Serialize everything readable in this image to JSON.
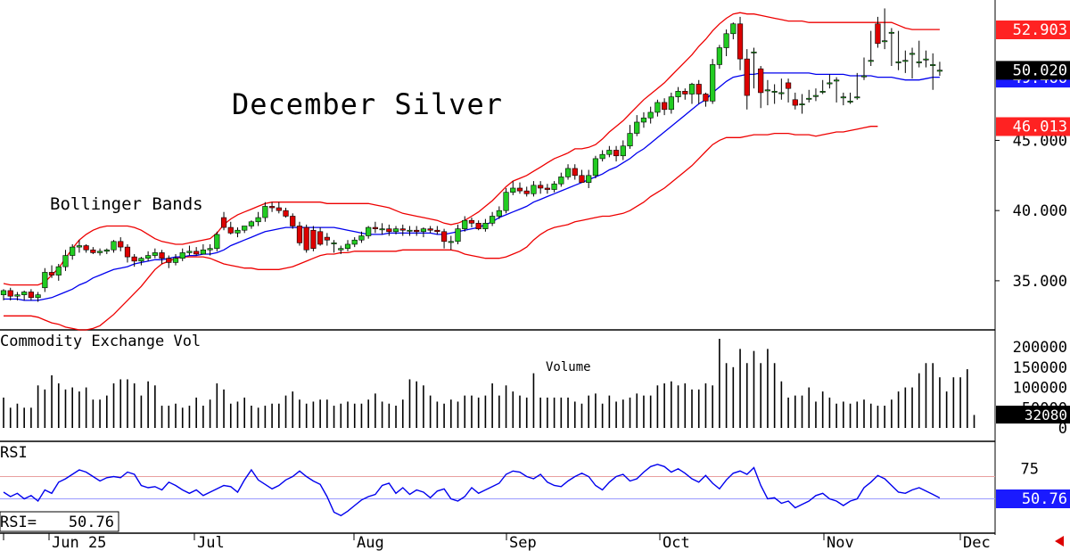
{
  "chart_data": [
    {
      "type": "candlestick",
      "title": "December Silver",
      "annotation": "Bollinger Bands",
      "y_ticks": [
        "35.000",
        "40.000",
        "45.000"
      ],
      "ylim": [
        31.5,
        55
      ],
      "last_price": "50.020",
      "upper_band_last": "52.903",
      "lower_band_last": "46.013",
      "middle_band_last": "49.466",
      "colors": {
        "up": "#22cc22",
        "down": "#dd0000",
        "band": "#ee0000",
        "middle": "#0000ee",
        "label_red": "#ff2222",
        "label_blue": "#1a1aff"
      },
      "bars": {
        "o": [
          34.0,
          34.3,
          33.9,
          34.0,
          34.2,
          33.8,
          34.5,
          35.6,
          35.4,
          36.0,
          36.8,
          37.4,
          37.5,
          37.2,
          37.0,
          37.1,
          37.2,
          37.8,
          37.4,
          36.7,
          36.4,
          36.6,
          36.8,
          37.0,
          36.6,
          36.3,
          36.6,
          37.0,
          37.1,
          36.9,
          37.2,
          37.3,
          39.5,
          38.8,
          38.4,
          38.6,
          38.9,
          39.2,
          39.5,
          40.3,
          40.2,
          40.0,
          39.6,
          38.9,
          38.8,
          38.6,
          38.5,
          38.1,
          37.7,
          37.2,
          37.3,
          37.6,
          37.9,
          38.2,
          38.8,
          38.7,
          38.7,
          38.5,
          38.7,
          38.6,
          38.6,
          38.5,
          38.7,
          38.6,
          38.5,
          37.8,
          37.8,
          38.7,
          39.3,
          39.1,
          38.7,
          39.1,
          39.6,
          40.0,
          41.3,
          41.6,
          41.4,
          41.2,
          41.8,
          41.6,
          41.5,
          41.9,
          42.4,
          43.0,
          42.5,
          42.0,
          42.5,
          43.7,
          44.0,
          44.3,
          43.9,
          44.6,
          45.5,
          46.3,
          46.6,
          47.0,
          47.7,
          47.2,
          48.1,
          48.5,
          48.3,
          49.0,
          48.3,
          47.8,
          50.4,
          51.6,
          52.6,
          53.3,
          50.8,
          51.3,
          50.1,
          48.6,
          48.5,
          48.4,
          49.1,
          47.9,
          47.6,
          48.0,
          48.2,
          48.5,
          49.1,
          49.3,
          48.1,
          47.8,
          48.1,
          49.6,
          50.7,
          53.3,
          52.1,
          52.7,
          50.6,
          50.7,
          51.2,
          50.6,
          50.8,
          50.4,
          50.0
        ],
        "h": [
          34.4,
          34.5,
          34.2,
          34.3,
          34.4,
          34.2,
          35.9,
          36.1,
          36.2,
          37.2,
          37.6,
          37.9,
          37.6,
          37.4,
          37.3,
          37.3,
          37.9,
          38.1,
          37.6,
          36.9,
          36.7,
          37.1,
          37.3,
          37.2,
          36.8,
          36.9,
          37.3,
          37.5,
          37.4,
          37.6,
          37.6,
          38.5,
          39.9,
          39.2,
          38.8,
          38.9,
          39.3,
          39.9,
          40.6,
          40.6,
          40.6,
          40.2,
          39.8,
          39.2,
          39.0,
          38.9,
          38.8,
          38.4,
          37.9,
          37.5,
          37.9,
          38.1,
          38.5,
          38.9,
          39.2,
          39.1,
          39.0,
          38.9,
          39.0,
          38.9,
          38.9,
          38.8,
          38.9,
          38.9,
          38.7,
          38.2,
          39.0,
          39.6,
          39.5,
          39.3,
          39.4,
          39.9,
          40.3,
          41.6,
          42.1,
          42.0,
          41.7,
          42.1,
          42.1,
          41.9,
          42.1,
          42.7,
          43.3,
          43.3,
          42.9,
          42.9,
          43.9,
          44.3,
          44.6,
          44.6,
          45.0,
          46.1,
          46.8,
          47.0,
          47.4,
          47.9,
          48.0,
          48.4,
          48.8,
          48.7,
          49.1,
          49.3,
          48.4,
          50.8,
          51.8,
          52.9,
          53.4,
          53.8,
          51.5,
          51.6,
          50.3,
          49.3,
          49.0,
          49.4,
          49.4,
          48.4,
          48.3,
          48.6,
          48.7,
          49.3,
          49.7,
          49.5,
          48.4,
          48.4,
          49.8,
          50.9,
          52.8,
          53.8,
          54.4,
          53.0,
          52.8,
          51.4,
          51.6,
          52.1,
          51.4,
          51.2,
          50.6
        ],
        "l": [
          33.6,
          33.6,
          33.6,
          33.6,
          33.6,
          33.5,
          34.2,
          35.2,
          35.0,
          35.7,
          36.5,
          37.0,
          37.0,
          36.9,
          36.8,
          36.9,
          37.0,
          37.1,
          36.3,
          36.0,
          36.1,
          36.4,
          36.6,
          36.2,
          35.9,
          36.1,
          36.4,
          36.8,
          36.8,
          36.9,
          36.8,
          37.1,
          38.6,
          38.3,
          38.1,
          38.4,
          38.7,
          38.9,
          39.2,
          39.9,
          39.8,
          39.5,
          38.7,
          37.5,
          37.0,
          37.1,
          37.5,
          37.5,
          37.0,
          36.9,
          37.1,
          37.4,
          37.7,
          38.0,
          38.4,
          38.3,
          38.2,
          38.3,
          38.2,
          38.2,
          38.2,
          38.1,
          38.4,
          38.3,
          37.3,
          37.2,
          37.6,
          38.5,
          38.8,
          38.6,
          38.5,
          38.9,
          39.4,
          39.8,
          41.1,
          41.2,
          41.0,
          41.0,
          41.2,
          41.2,
          41.3,
          41.7,
          42.2,
          42.2,
          42.1,
          41.6,
          42.3,
          43.5,
          43.8,
          43.5,
          43.6,
          44.4,
          45.3,
          45.9,
          46.2,
          46.7,
          46.8,
          46.9,
          47.7,
          47.9,
          47.6,
          47.6,
          47.4,
          47.6,
          50.1,
          51.0,
          52.2,
          50.0,
          47.2,
          48.7,
          47.3,
          47.5,
          47.6,
          47.9,
          47.7,
          47.2,
          46.9,
          47.7,
          47.8,
          48.3,
          48.7,
          47.7,
          47.5,
          47.6,
          47.9,
          49.3,
          50.3,
          51.6,
          51.5,
          50.3,
          50.0,
          49.8,
          49.4,
          50.2,
          50.2,
          48.6,
          49.6
        ],
        "c": [
          34.3,
          33.9,
          34.0,
          34.2,
          33.8,
          34.0,
          35.6,
          35.4,
          36.0,
          36.8,
          37.4,
          37.5,
          37.2,
          37.0,
          37.1,
          37.2,
          37.8,
          37.4,
          36.7,
          36.4,
          36.6,
          36.8,
          37.0,
          36.6,
          36.3,
          36.6,
          37.0,
          37.1,
          36.9,
          37.2,
          37.3,
          38.3,
          38.8,
          38.4,
          38.6,
          38.9,
          39.2,
          39.5,
          40.3,
          40.2,
          40.0,
          39.6,
          38.9,
          37.7,
          37.2,
          37.3,
          37.6,
          37.9,
          37.7,
          37.3,
          37.6,
          37.9,
          38.2,
          38.8,
          38.7,
          38.7,
          38.5,
          38.7,
          38.6,
          38.6,
          38.5,
          38.7,
          38.6,
          38.5,
          37.8,
          37.8,
          38.7,
          39.3,
          39.1,
          38.7,
          39.1,
          39.6,
          40.0,
          41.3,
          41.6,
          41.4,
          41.2,
          41.8,
          41.6,
          41.5,
          41.9,
          42.4,
          43.0,
          42.5,
          42.0,
          42.5,
          43.7,
          44.0,
          44.3,
          43.9,
          44.6,
          45.5,
          46.3,
          46.6,
          47.0,
          47.7,
          47.2,
          48.1,
          48.5,
          48.3,
          49.0,
          48.3,
          47.8,
          50.4,
          51.6,
          52.6,
          53.3,
          50.8,
          48.2,
          51.3,
          48.4,
          48.6,
          48.5,
          48.4,
          48.7,
          47.5,
          47.6,
          48.0,
          48.2,
          48.5,
          49.1,
          49.3,
          48.1,
          47.8,
          48.1,
          49.6,
          50.7,
          51.9,
          52.1,
          52.7,
          50.6,
          50.7,
          51.2,
          50.6,
          50.8,
          50.4,
          50.0
        ]
      },
      "upper_band": [
        34.8,
        34.7,
        34.7,
        34.7,
        34.7,
        34.7,
        34.9,
        35.4,
        35.9,
        36.6,
        37.3,
        37.9,
        38.3,
        38.6,
        38.8,
        38.9,
        38.9,
        38.9,
        38.9,
        38.8,
        38.6,
        38.3,
        38.0,
        37.8,
        37.7,
        37.6,
        37.6,
        37.7,
        37.8,
        37.9,
        38.0,
        38.4,
        39.0,
        39.4,
        39.7,
        39.9,
        40.1,
        40.3,
        40.5,
        40.6,
        40.6,
        40.6,
        40.6,
        40.6,
        40.6,
        40.6,
        40.6,
        40.5,
        40.5,
        40.5,
        40.5,
        40.5,
        40.5,
        40.5,
        40.4,
        40.3,
        40.2,
        40.0,
        39.8,
        39.7,
        39.6,
        39.5,
        39.4,
        39.3,
        39.1,
        39.0,
        39.1,
        39.3,
        39.6,
        39.9,
        40.3,
        40.7,
        41.2,
        41.7,
        42.1,
        42.3,
        42.5,
        42.8,
        43.1,
        43.4,
        43.7,
        43.9,
        44.1,
        44.4,
        44.4,
        44.5,
        44.7,
        45.1,
        45.6,
        46.0,
        46.4,
        46.9,
        47.4,
        47.9,
        48.3,
        48.7,
        49.1,
        49.6,
        50.1,
        50.6,
        51.1,
        51.7,
        52.2,
        52.8,
        53.3,
        53.7,
        54.0,
        54.1,
        54.0,
        54.0,
        53.9,
        53.8,
        53.7,
        53.6,
        53.5,
        53.5,
        53.5,
        53.4,
        53.4,
        53.4,
        53.4,
        53.4,
        53.4,
        53.4,
        53.4,
        53.4,
        53.4,
        53.4,
        53.4,
        53.4,
        53.2,
        53.0,
        52.9,
        52.9,
        52.9,
        52.9,
        52.9
      ],
      "middle_band": [
        33.7,
        33.7,
        33.7,
        33.6,
        33.6,
        33.6,
        33.7,
        33.8,
        34.0,
        34.2,
        34.4,
        34.7,
        34.9,
        35.2,
        35.4,
        35.6,
        35.8,
        35.9,
        36.0,
        36.2,
        36.3,
        36.4,
        36.5,
        36.5,
        36.6,
        36.7,
        36.7,
        36.8,
        36.8,
        36.9,
        36.9,
        37.0,
        37.2,
        37.5,
        37.7,
        37.9,
        38.1,
        38.3,
        38.5,
        38.6,
        38.7,
        38.8,
        38.8,
        38.8,
        38.8,
        38.8,
        38.8,
        38.8,
        38.8,
        38.7,
        38.6,
        38.5,
        38.4,
        38.3,
        38.3,
        38.3,
        38.4,
        38.4,
        38.4,
        38.4,
        38.4,
        38.4,
        38.4,
        38.3,
        38.3,
        38.4,
        38.5,
        38.6,
        38.7,
        38.8,
        39.0,
        39.2,
        39.5,
        39.7,
        39.9,
        40.1,
        40.3,
        40.6,
        40.8,
        41.0,
        41.2,
        41.4,
        41.6,
        41.8,
        42.0,
        42.2,
        42.4,
        42.6,
        42.9,
        43.1,
        43.4,
        43.7,
        44.1,
        44.4,
        44.8,
        45.2,
        45.6,
        46.0,
        46.4,
        46.8,
        47.2,
        47.6,
        47.9,
        48.4,
        48.8,
        49.2,
        49.5,
        49.6,
        49.7,
        49.7,
        49.8,
        49.8,
        49.8,
        49.8,
        49.8,
        49.8,
        49.8,
        49.8,
        49.7,
        49.7,
        49.7,
        49.7,
        49.7,
        49.6,
        49.6,
        49.6,
        49.6,
        49.5,
        49.5,
        49.5,
        49.4,
        49.3,
        49.3,
        49.3,
        49.4,
        49.5,
        49.5
      ],
      "lower_band": [
        32.5,
        32.5,
        32.5,
        32.5,
        32.5,
        32.4,
        32.2,
        32.0,
        31.9,
        31.7,
        31.6,
        31.5,
        31.5,
        31.6,
        31.8,
        32.2,
        32.6,
        33.1,
        33.6,
        34.1,
        34.6,
        35.2,
        35.8,
        36.2,
        36.4,
        36.6,
        36.7,
        36.7,
        36.7,
        36.7,
        36.6,
        36.4,
        36.2,
        36.1,
        36.0,
        35.9,
        35.9,
        35.8,
        35.8,
        35.8,
        35.8,
        35.9,
        36.0,
        36.2,
        36.4,
        36.6,
        36.8,
        36.9,
        36.9,
        37.0,
        37.0,
        37.1,
        37.1,
        37.1,
        37.1,
        37.1,
        37.1,
        37.1,
        37.2,
        37.2,
        37.2,
        37.2,
        37.2,
        37.2,
        37.2,
        37.2,
        37.1,
        36.9,
        36.8,
        36.7,
        36.6,
        36.6,
        36.6,
        36.7,
        36.9,
        37.1,
        37.4,
        37.9,
        38.3,
        38.6,
        38.8,
        38.9,
        39.0,
        39.2,
        39.3,
        39.4,
        39.5,
        39.6,
        39.6,
        39.7,
        39.8,
        40.0,
        40.3,
        40.6,
        41.0,
        41.3,
        41.6,
        42.0,
        42.4,
        42.8,
        43.2,
        43.7,
        44.2,
        44.7,
        45.0,
        45.2,
        45.2,
        45.2,
        45.3,
        45.4,
        45.4,
        45.4,
        45.5,
        45.5,
        45.5,
        45.4,
        45.4,
        45.4,
        45.3,
        45.4,
        45.5,
        45.6,
        45.6,
        45.7,
        45.8,
        45.9,
        46.0,
        46.0
      ],
      "x_ticks": [
        "Jun 25",
        "Jul",
        "Aug",
        "Sep",
        "Oct",
        "Nov",
        "Dec"
      ]
    },
    {
      "type": "bar",
      "title": "Commodity Exchange Vol",
      "annotation": "Volume",
      "y_ticks": [
        "200000",
        "150000",
        "100000",
        "50000",
        "0"
      ],
      "ylim": [
        0,
        220000
      ],
      "last_value": "32080",
      "values": [
        75000,
        50000,
        60000,
        50000,
        50000,
        105000,
        95000,
        130000,
        110000,
        95000,
        100000,
        90000,
        100000,
        70000,
        70000,
        80000,
        110000,
        120000,
        120000,
        110000,
        80000,
        115000,
        105000,
        55000,
        55000,
        60000,
        50000,
        55000,
        75000,
        55000,
        70000,
        110000,
        95000,
        60000,
        65000,
        75000,
        55000,
        50000,
        55000,
        60000,
        60000,
        80000,
        90000,
        70000,
        60000,
        65000,
        70000,
        70000,
        55000,
        60000,
        65000,
        60000,
        60000,
        70000,
        85000,
        65000,
        60000,
        55000,
        70000,
        120000,
        115000,
        105000,
        80000,
        65000,
        60000,
        70000,
        65000,
        80000,
        80000,
        75000,
        80000,
        110000,
        80000,
        105000,
        90000,
        80000,
        75000,
        135000,
        75000,
        75000,
        75000,
        75000,
        75000,
        65000,
        60000,
        80000,
        85000,
        60000,
        80000,
        65000,
        70000,
        75000,
        85000,
        80000,
        80000,
        105000,
        110000,
        115000,
        105000,
        110000,
        95000,
        95000,
        110000,
        105000,
        220000,
        160000,
        150000,
        195000,
        160000,
        190000,
        160000,
        195000,
        160000,
        115000,
        75000,
        80000,
        80000,
        100000,
        65000,
        90000,
        75000,
        60000,
        65000,
        60000,
        65000,
        70000,
        60000,
        55000,
        55000,
        70000,
        90000,
        100000,
        100000,
        135000,
        160000,
        160000,
        125000,
        90000,
        125000,
        125000,
        145000,
        32080
      ]
    },
    {
      "type": "line",
      "title": "RSI",
      "readout_label": "RSI=",
      "readout_value": "50.76",
      "y_ticks": [
        "75"
      ],
      "levels": [
        70,
        50
      ],
      "ylim": [
        20,
        100
      ],
      "last_value": "50.76",
      "values": [
        56,
        52,
        55,
        50,
        53,
        48,
        58,
        55,
        65,
        68,
        72,
        76,
        74,
        70,
        66,
        69,
        70,
        69,
        74,
        72,
        62,
        60,
        61,
        58,
        65,
        62,
        58,
        55,
        58,
        53,
        56,
        59,
        62,
        61,
        56,
        67,
        76,
        67,
        63,
        59,
        62,
        67,
        70,
        75,
        70,
        66,
        63,
        52,
        38,
        35,
        39,
        44,
        49,
        52,
        54,
        62,
        64,
        55,
        60,
        54,
        58,
        56,
        51,
        57,
        59,
        50,
        48,
        52,
        60,
        55,
        58,
        61,
        64,
        72,
        75,
        74,
        70,
        68,
        72,
        65,
        62,
        61,
        66,
        70,
        73,
        70,
        62,
        58,
        65,
        70,
        72,
        66,
        68,
        74,
        79,
        81,
        79,
        74,
        77,
        73,
        68,
        65,
        71,
        64,
        59,
        67,
        73,
        75,
        72,
        78,
        62,
        50,
        51,
        46,
        48,
        42,
        45,
        48,
        53,
        55,
        50,
        48,
        44,
        48,
        50,
        60,
        65,
        71,
        68,
        62,
        56,
        55,
        58,
        60,
        57,
        54,
        50.76
      ]
    }
  ],
  "panel2_header": "Commodity Exchange Vol",
  "panel3_header": "RSI"
}
